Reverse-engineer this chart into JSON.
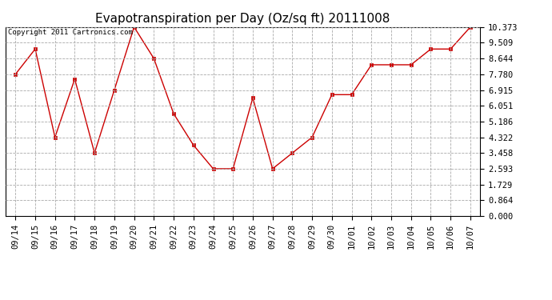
{
  "title": "Evapotranspiration per Day (Oz/sq ft) 20111008",
  "copyright_text": "Copyright 2011 Cartronics.com",
  "x_labels": [
    "09/14",
    "09/15",
    "09/16",
    "09/17",
    "09/18",
    "09/19",
    "09/20",
    "09/21",
    "09/22",
    "09/23",
    "09/24",
    "09/25",
    "09/26",
    "09/27",
    "09/28",
    "09/29",
    "09/30",
    "10/01",
    "10/02",
    "10/03",
    "10/04",
    "10/05",
    "10/06",
    "10/07"
  ],
  "y_values": [
    7.78,
    9.164,
    4.322,
    7.52,
    3.458,
    6.915,
    10.373,
    8.644,
    5.615,
    3.89,
    2.593,
    2.593,
    6.48,
    2.593,
    3.458,
    4.322,
    6.66,
    6.66,
    8.3,
    8.3,
    8.3,
    9.164,
    9.164,
    10.373
  ],
  "y_ticks": [
    0.0,
    0.864,
    1.729,
    2.593,
    3.458,
    4.322,
    5.186,
    6.051,
    6.915,
    7.78,
    8.644,
    9.509,
    10.373
  ],
  "line_color": "#cc0000",
  "marker_color": "#cc0000",
  "background_color": "#ffffff",
  "plot_bg_color": "#ffffff",
  "grid_color": "#aaaaaa",
  "title_fontsize": 11,
  "copyright_fontsize": 6.5,
  "tick_fontsize": 7.5,
  "ylim": [
    0.0,
    10.373
  ]
}
